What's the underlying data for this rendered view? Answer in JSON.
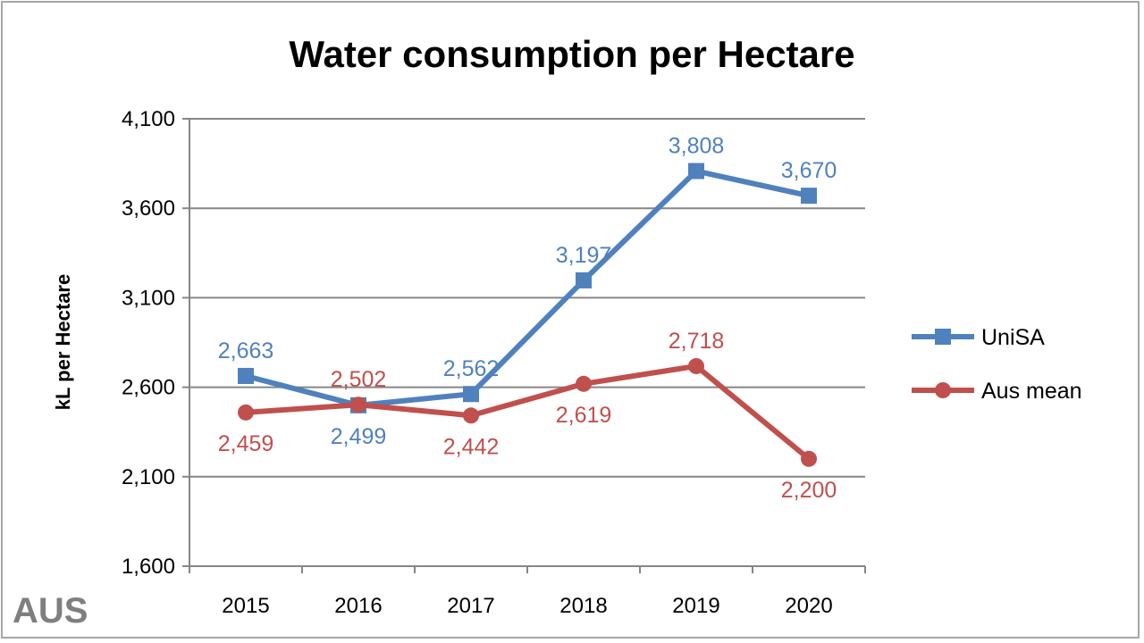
{
  "chart_data": {
    "type": "line",
    "title": "Water consumption per Hectare",
    "xlabel": "",
    "ylabel": "kL per Hectare",
    "categories": [
      "2015",
      "2016",
      "2017",
      "2018",
      "2019",
      "2020"
    ],
    "ylim": [
      1600,
      4100
    ],
    "yticks": [
      1600,
      2100,
      2600,
      3100,
      3600,
      4100
    ],
    "ytick_labels": [
      "1,600",
      "2,100",
      "2,600",
      "3,100",
      "3,600",
      "4,100"
    ],
    "grid": "horizontal",
    "legend_position": "right",
    "series": [
      {
        "name": "UniSA",
        "color": "#4F81BD",
        "marker": "square",
        "values": [
          2663,
          2499,
          2562,
          3197,
          3808,
          3670
        ],
        "labels": [
          "2,663",
          "2,499",
          "2,562",
          "3,197",
          "3,808",
          "3,670"
        ]
      },
      {
        "name": "Aus mean",
        "color": "#C0504D",
        "marker": "circle",
        "values": [
          2459,
          2502,
          2442,
          2619,
          2718,
          2200
        ],
        "labels": [
          "2,459",
          "2,502",
          "2,442",
          "2,619",
          "2,718",
          "2,200"
        ]
      }
    ]
  },
  "watermark": "AUS"
}
